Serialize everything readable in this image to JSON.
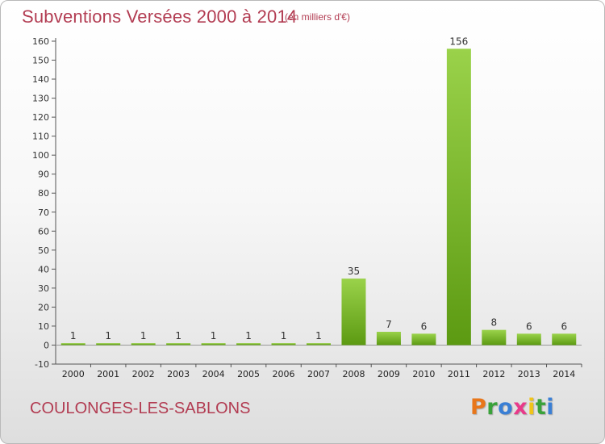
{
  "header": {
    "title": "Subventions Versées 2000 à 2014",
    "unit": "(en milliers d'€)"
  },
  "footer": {
    "commune": "COULONGES-LES-SABLONS",
    "logo_letters": [
      "P",
      "r",
      "o",
      "x",
      "i",
      "t",
      "i"
    ],
    "logo_colors": [
      "#e8761a",
      "#3aa23a",
      "#3a7fd5",
      "#e83a8a",
      "#f0c419",
      "#3aa23a",
      "#3a7fd5"
    ]
  },
  "colors": {
    "text_accent": "#b23c52",
    "bar_light": "#9ad24a",
    "bar_dark": "#5c9a12"
  },
  "chart_data": {
    "type": "bar",
    "categories": [
      "2000",
      "2001",
      "2002",
      "2003",
      "2004",
      "2005",
      "2006",
      "2007",
      "2008",
      "2009",
      "2010",
      "2011",
      "2012",
      "2013",
      "2014"
    ],
    "values": [
      1,
      1,
      1,
      1,
      1,
      1,
      1,
      1,
      35,
      7,
      6,
      156,
      8,
      6,
      6
    ],
    "data_labels": [
      "1",
      "1",
      "1",
      "1",
      "1",
      "1",
      "1",
      "1",
      "35",
      "7",
      "6",
      "156",
      "8",
      "6",
      "6"
    ],
    "ylim": [
      -10,
      160
    ],
    "yticks": [
      -10,
      0,
      10,
      20,
      30,
      40,
      50,
      60,
      70,
      80,
      90,
      100,
      110,
      120,
      130,
      140,
      150,
      160
    ],
    "grid": false,
    "legend": "none"
  }
}
